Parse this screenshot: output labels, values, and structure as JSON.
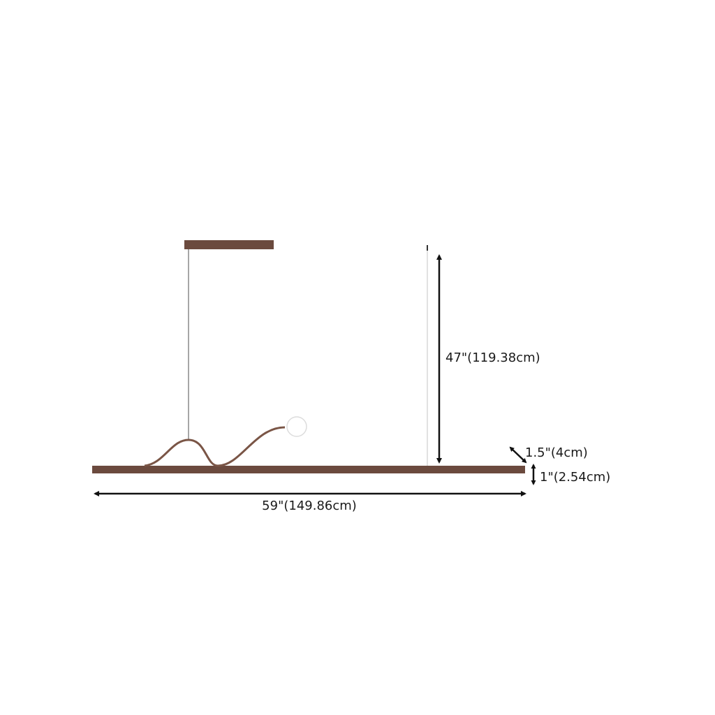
{
  "dimensions": {
    "height": "47\"(119.38cm)",
    "depth": "1.5\"(4cm)",
    "thickness": "1\"(2.54cm)",
    "length": "59\"(149.86cm)"
  },
  "colors": {
    "fixture": "#6b4a3e",
    "arrow": "#111111",
    "cord": "#8a8a8a"
  }
}
